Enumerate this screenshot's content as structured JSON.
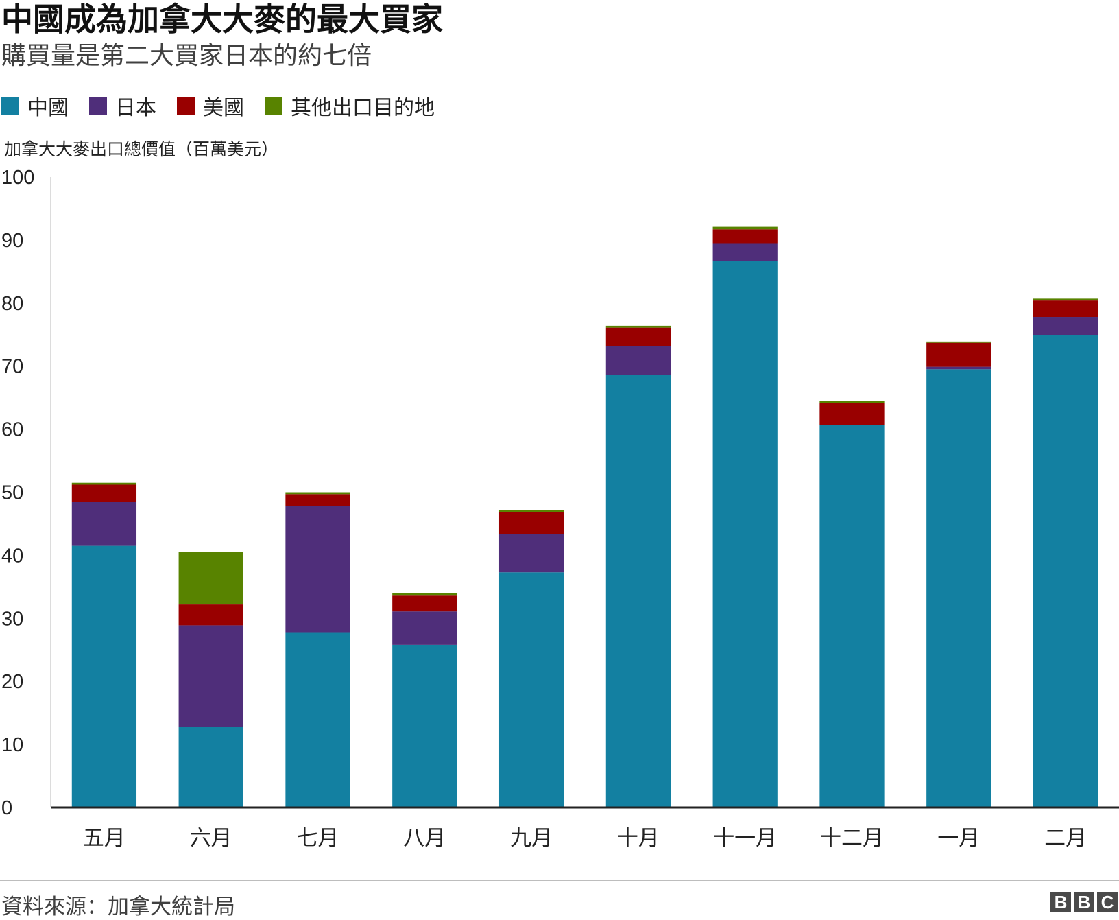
{
  "header": {
    "title": "中國成為加拿大大麥的最大買家",
    "subtitle": "購買量是第二大買家日本的約七倍"
  },
  "footer": {
    "source": "資料來源：加拿大統計局",
    "logo_letters": [
      "B",
      "B",
      "C"
    ]
  },
  "chart_data": {
    "type": "bar",
    "stacked": true,
    "title": "中國成為加拿大大麥的最大買家",
    "subtitle": "購買量是第二大買家日本的約七倍",
    "ylabel": "加拿大大麥出口總價值（百萬美元）",
    "xlabel": "",
    "ylim": [
      0,
      100
    ],
    "yticks": [
      0,
      10,
      20,
      30,
      40,
      50,
      60,
      70,
      80,
      90,
      100
    ],
    "grid": false,
    "legend_position": "top-left",
    "categories": [
      "五月",
      "六月",
      "七月",
      "八月",
      "九月",
      "十月",
      "十一月",
      "十二月",
      "一月",
      "二月"
    ],
    "series": [
      {
        "name": "中國",
        "color": "#1380A1",
        "values": [
          41.5,
          12.8,
          27.8,
          25.8,
          37.3,
          68.6,
          86.7,
          60.7,
          69.5,
          74.9
        ]
      },
      {
        "name": "日本",
        "color": "#4F2E7A",
        "values": [
          7.0,
          16.1,
          20.0,
          5.3,
          6.1,
          4.6,
          2.8,
          0.0,
          0.4,
          2.9
        ]
      },
      {
        "name": "美國",
        "color": "#990000",
        "values": [
          2.7,
          3.3,
          1.9,
          2.5,
          3.5,
          2.9,
          2.2,
          3.5,
          3.8,
          2.6
        ]
      },
      {
        "name": "其他出口目的地",
        "color": "#588300",
        "values": [
          0.3,
          8.3,
          0.3,
          0.4,
          0.3,
          0.3,
          0.4,
          0.3,
          0.2,
          0.3
        ]
      }
    ]
  }
}
